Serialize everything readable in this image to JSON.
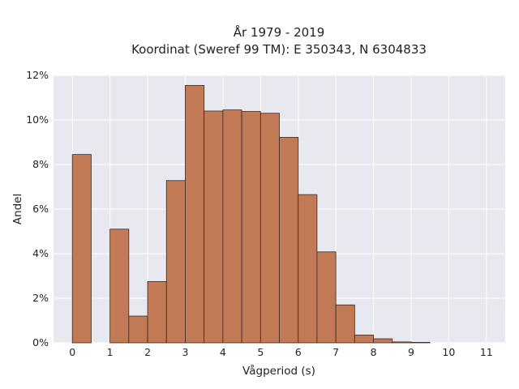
{
  "chart_data": {
    "type": "bar",
    "title_line1": "År 1979 - 2019",
    "title_line2": "Koordinat (Sweref 99 TM): E 350343, N 6304833",
    "xlabel": "Vågperiod (s)",
    "ylabel": "Andel",
    "bin_width": 0.5,
    "bins": [
      {
        "x": 0.0,
        "value": 8.45
      },
      {
        "x": 0.5,
        "value": 0.0
      },
      {
        "x": 1.0,
        "value": 5.1
      },
      {
        "x": 1.5,
        "value": 1.2
      },
      {
        "x": 2.0,
        "value": 2.75
      },
      {
        "x": 2.5,
        "value": 7.28
      },
      {
        "x": 3.0,
        "value": 11.55
      },
      {
        "x": 3.5,
        "value": 10.4
      },
      {
        "x": 4.0,
        "value": 10.45
      },
      {
        "x": 4.5,
        "value": 10.38
      },
      {
        "x": 5.0,
        "value": 10.3
      },
      {
        "x": 5.5,
        "value": 9.22
      },
      {
        "x": 6.0,
        "value": 6.65
      },
      {
        "x": 6.5,
        "value": 4.08
      },
      {
        "x": 7.0,
        "value": 1.7
      },
      {
        "x": 7.5,
        "value": 0.35
      },
      {
        "x": 8.0,
        "value": 0.18
      },
      {
        "x": 8.5,
        "value": 0.04
      },
      {
        "x": 9.0,
        "value": 0.02
      }
    ],
    "xlim": [
      -0.5,
      11.5
    ],
    "ylim": [
      0,
      12
    ],
    "x_ticks": [
      "0",
      "1",
      "2",
      "3",
      "4",
      "5",
      "6",
      "7",
      "8",
      "9",
      "10",
      "11"
    ],
    "y_ticks": [
      "0%",
      "2%",
      "4%",
      "6%",
      "8%",
      "10%",
      "12%"
    ],
    "grid": true,
    "colors": {
      "bar_fill": "#c17a55",
      "bar_stroke": "#3b2a20",
      "plot_bg": "#e8e8f0",
      "grid": "#ffffff"
    }
  }
}
